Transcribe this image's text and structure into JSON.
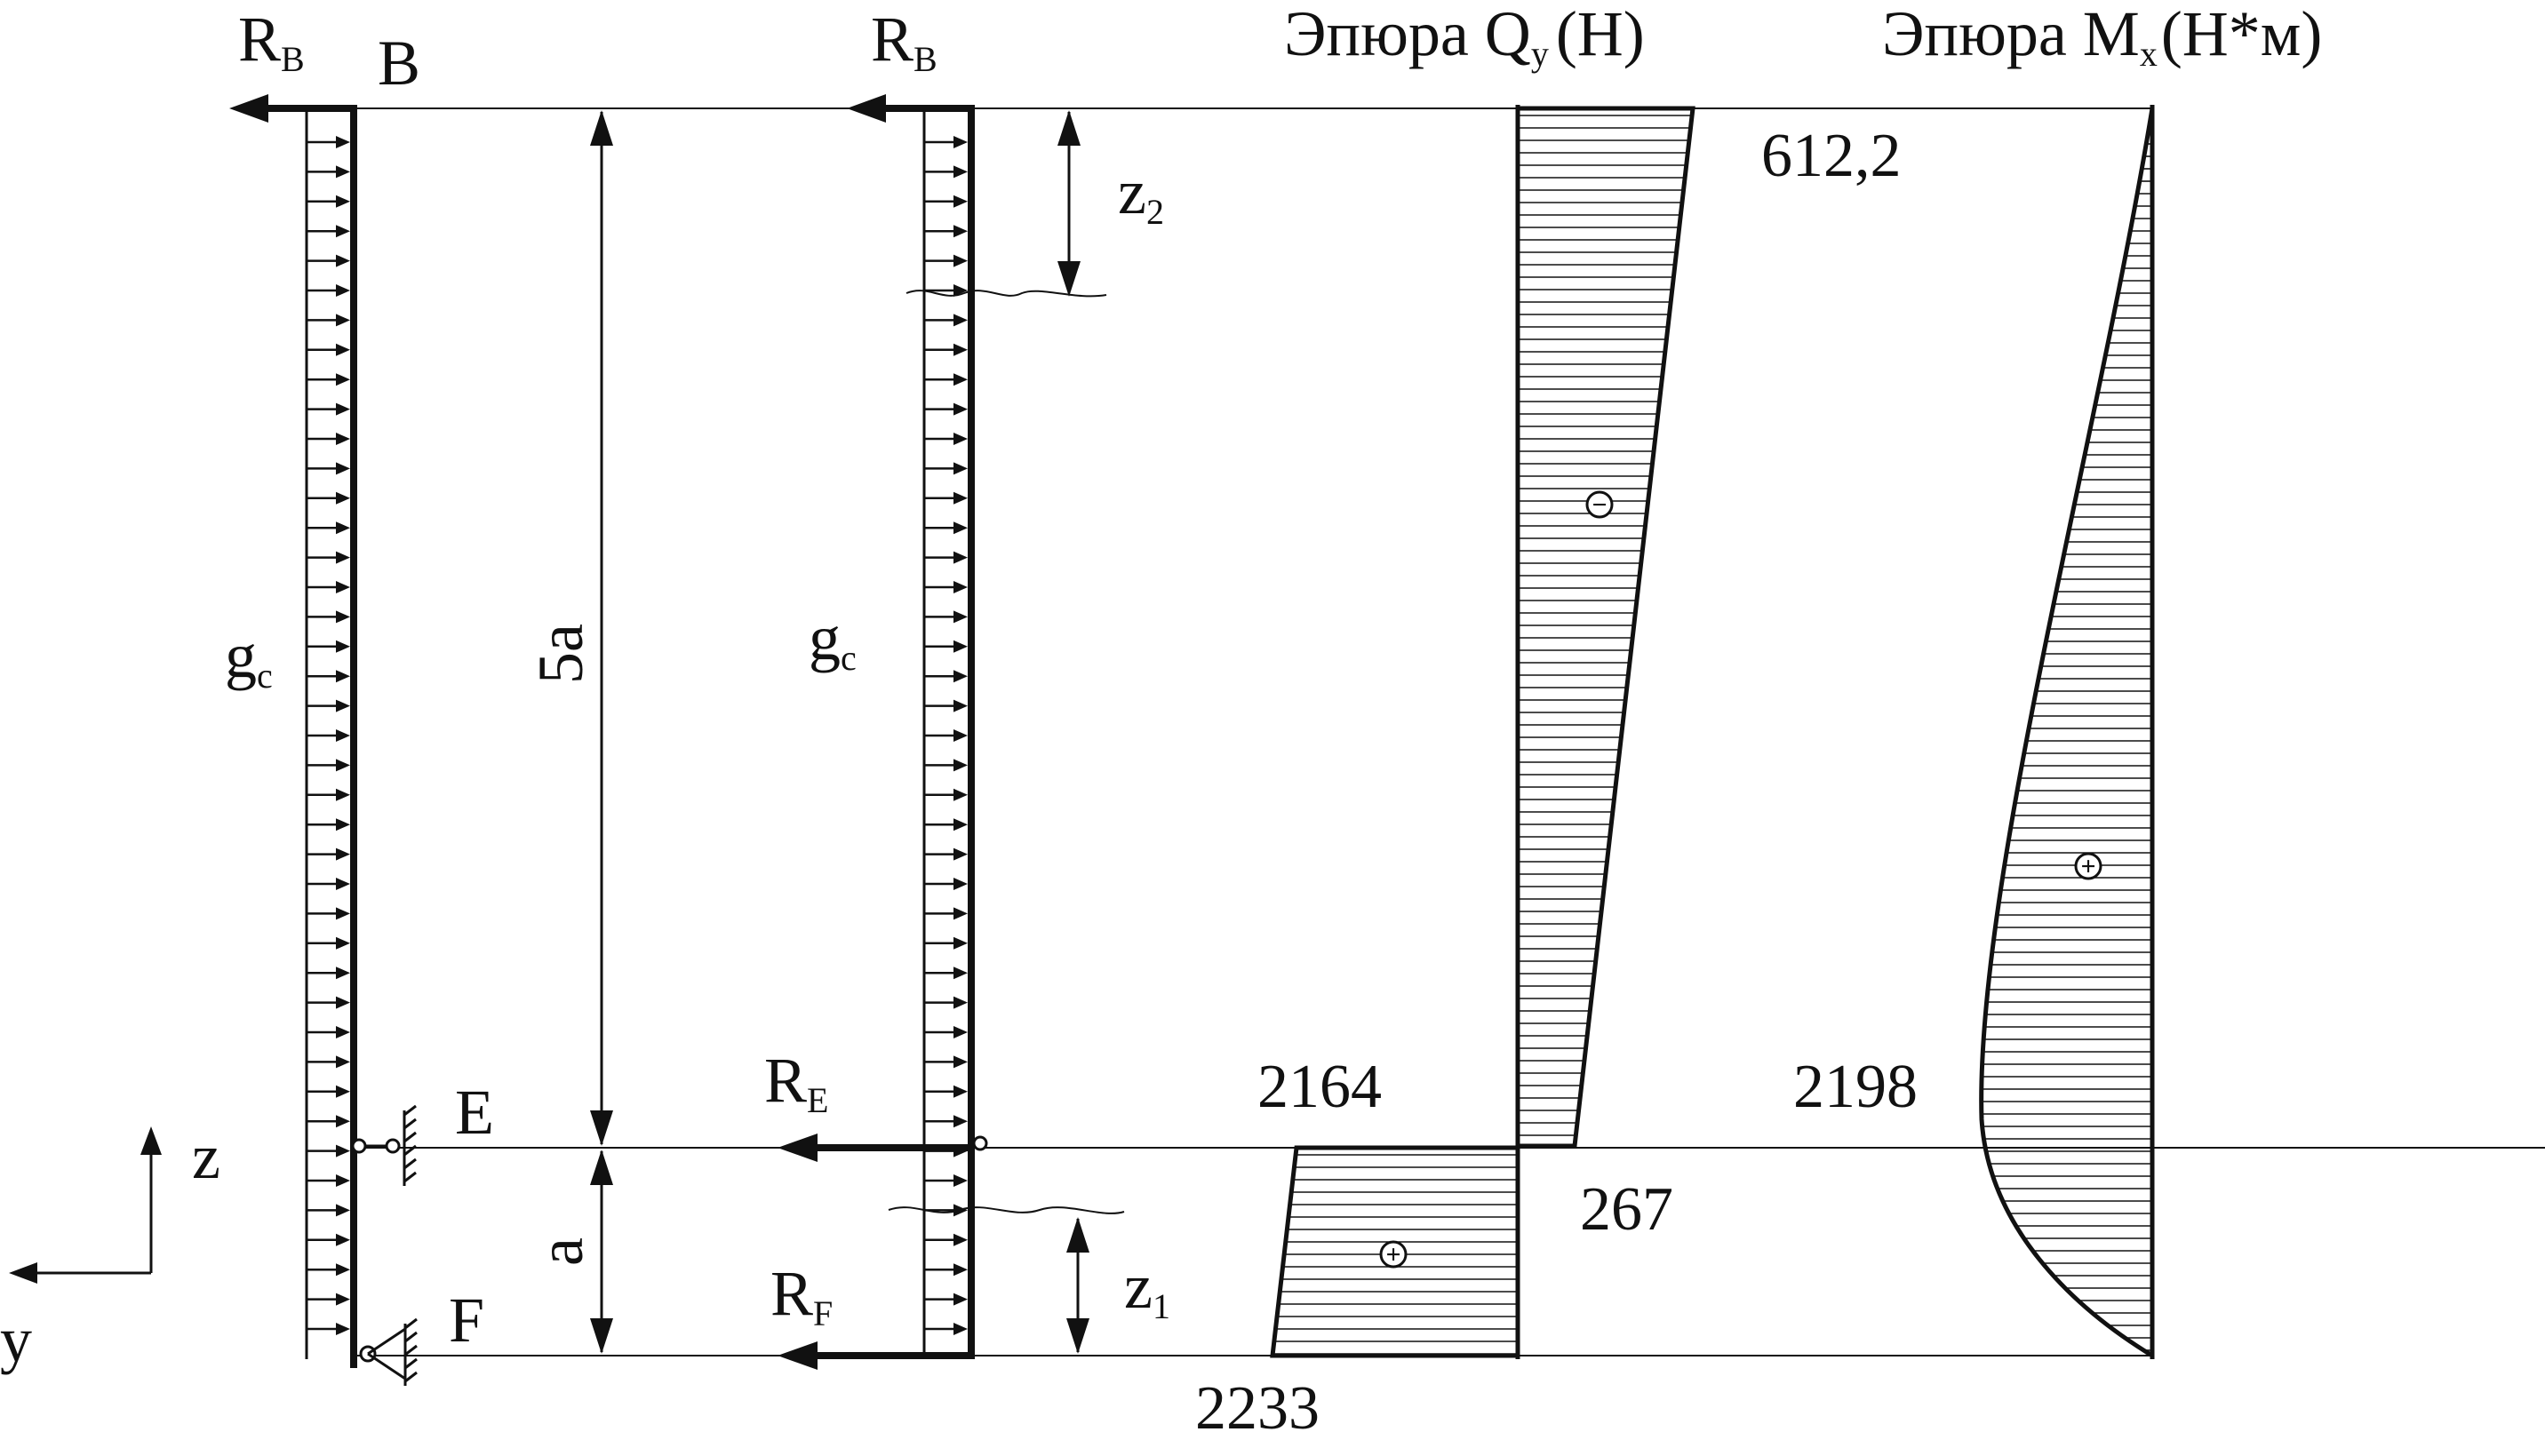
{
  "colors": {
    "ink": "#111111",
    "background": "#ffffff"
  },
  "labels": {
    "rb_main": "R",
    "rb_sub": "B",
    "point_b": "B",
    "point_e": "E",
    "point_f": "F",
    "load_main": "g",
    "load_sub": "c",
    "dim_5a": "5a",
    "dim_a": "a",
    "z2_main": "z",
    "z2_sub": "2",
    "z1_main": "z",
    "z1_sub": "1",
    "re_main": "R",
    "re_sub": "E",
    "rf_main": "R",
    "rf_sub": "F",
    "axis_z": "z",
    "axis_y": "y"
  },
  "q_diagram": {
    "title_prefix": "Эпюра Q",
    "title_sub": "y",
    "title_unit": "(H)",
    "value_top": "612,2",
    "value_mid_left": "2164",
    "value_mid_right": "267",
    "value_bottom": "2233",
    "sign_upper": "−",
    "sign_lower": "+"
  },
  "m_diagram": {
    "title_prefix": "Эпюра M",
    "title_sub": "x",
    "title_unit": "(H*м)",
    "value_mid": "2198",
    "sign": "+"
  }
}
